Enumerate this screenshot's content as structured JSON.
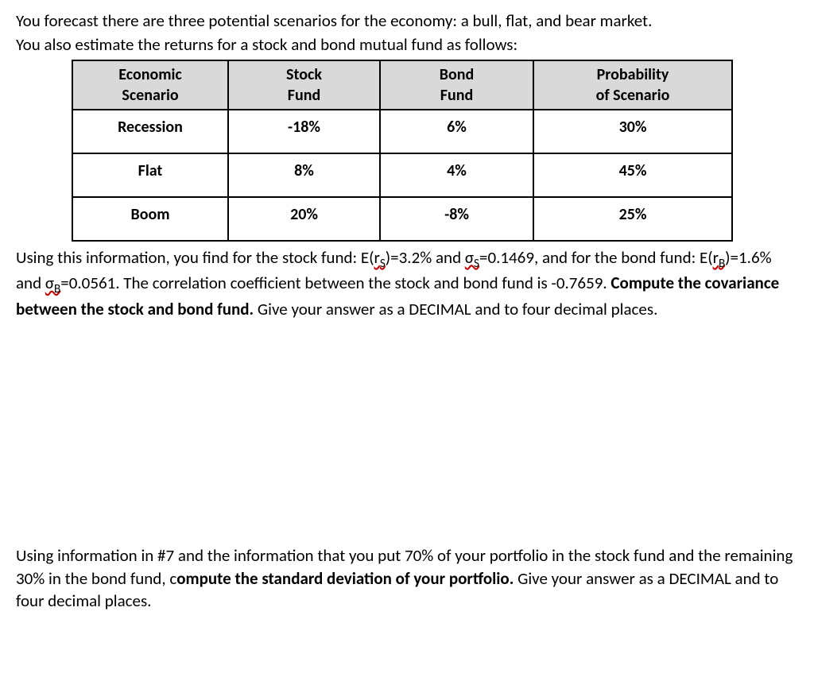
{
  "intro1": "You forecast there are three potential scenarios for the economy: a bull, flat, and bear market.",
  "intro2": "You also estimate the returns for a stock and bond mutual fund as follows:",
  "table": {
    "headers": [
      {
        "l1": "Economic",
        "l2": "Scenario"
      },
      {
        "l1": "Stock",
        "l2": "Fund"
      },
      {
        "l1": "Bond",
        "l2": "Fund"
      },
      {
        "l1": "Probability",
        "l2": "of Scenario"
      }
    ],
    "rows": [
      {
        "c1": "Recession",
        "c2": "-18%",
        "c3": "6%",
        "c4": "30%"
      },
      {
        "c1": "Flat",
        "c2": "8%",
        "c3": "4%",
        "c4": "45%"
      },
      {
        "c1": "Boom",
        "c2": "20%",
        "c3": "-8%",
        "c4": "25%"
      }
    ]
  },
  "body": {
    "seg1": "Using this information, you find for the stock fund: E(",
    "rs": "r",
    "rs_sub": "S",
    "seg2": ")=3.2% and ",
    "sigma_s": "σ",
    "sigma_s_sub": "S",
    "seg3": "=0.1469, and for the bond fund: E(",
    "rb": "r",
    "rb_sub": "B",
    "seg4": ")=1.6% and ",
    "sigma_b": "σ",
    "sigma_b_sub": "B",
    "seg5": "=0.0561. The correlation coefficient between the stock and bond fund is -0.7659. ",
    "bold1": "Compute the covariance between the stock and bond fund.",
    "seg6": " Give your answer as a DECIMAL and to four decimal places."
  },
  "q2": {
    "seg1": "Using information in #7 and the information that you put 70% of your portfolio in the stock fund and the remaining 30% in the bond fund, c",
    "bold1": "ompute the standard deviation of your portfolio.",
    "seg2": " Give your answer as a DECIMAL and to four decimal places."
  }
}
